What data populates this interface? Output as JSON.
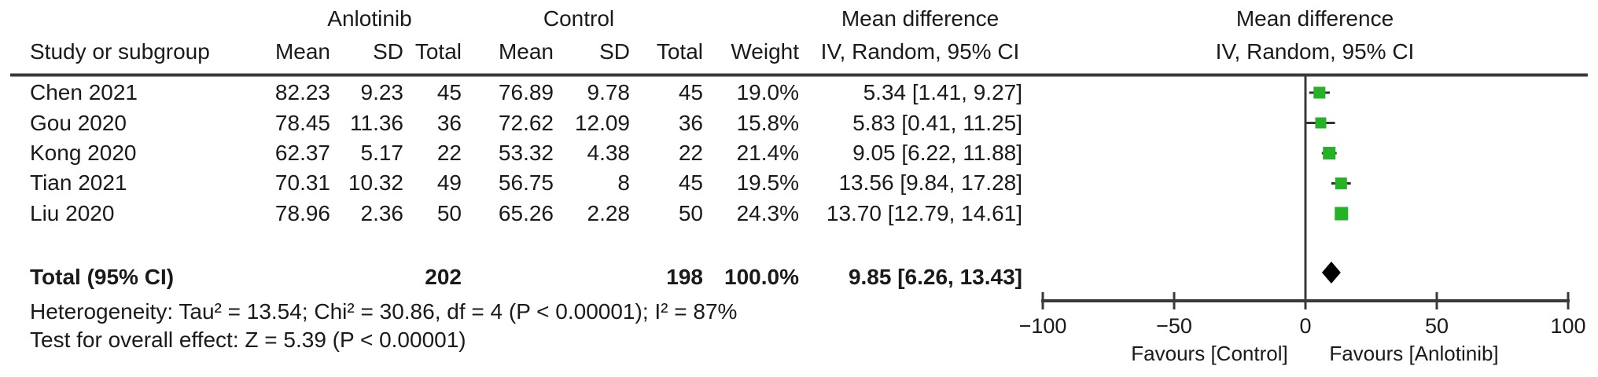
{
  "header": {
    "group1": "Anlotinib",
    "group2": "Control",
    "col_study": "Study or subgroup",
    "col_mean1": "Mean",
    "col_sd1": "SD",
    "col_total1": "Total",
    "col_mean2": "Mean",
    "col_sd2": "SD",
    "col_total2": "Total",
    "col_weight": "Weight",
    "md_title": "Mean difference",
    "md_subtitle": "IV, Random, 95% CI",
    "plot_title": "Mean difference",
    "plot_subtitle": "IV, Random, 95% CI"
  },
  "table": {
    "rows": [
      {
        "study": "Chen 2021",
        "mean1": "82.23",
        "sd1": "9.23",
        "total1": "45",
        "mean2": "76.89",
        "sd2": "9.78",
        "total2": "45",
        "weight": "19.0%",
        "ci": "5.34 [1.41, 9.27]"
      },
      {
        "study": "Gou 2020",
        "mean1": "78.45",
        "sd1": "11.36",
        "total1": "36",
        "mean2": "72.62",
        "sd2": "12.09",
        "total2": "36",
        "weight": "15.8%",
        "ci": "5.83 [0.41, 11.25]"
      },
      {
        "study": "Kong 2020",
        "mean1": "62.37",
        "sd1": "5.17",
        "total1": "22",
        "mean2": "53.32",
        "sd2": "4.38",
        "total2": "22",
        "weight": "21.4%",
        "ci": "9.05 [6.22, 11.88]"
      },
      {
        "study": "Tian 2021",
        "mean1": "70.31",
        "sd1": "10.32",
        "total1": "49",
        "mean2": "56.75",
        "sd2": "8",
        "total2": "45",
        "weight": "19.5%",
        "ci": "13.56 [9.84, 17.28]"
      },
      {
        "study": "Liu 2020",
        "mean1": "78.96",
        "sd1": "2.36",
        "total1": "50",
        "mean2": "65.26",
        "sd2": "2.28",
        "total2": "50",
        "weight": "24.3%",
        "ci": "13.70 [12.79, 14.61]"
      }
    ],
    "total": {
      "label": "Total (95% CI)",
      "total1": "202",
      "total2": "198",
      "weight": "100.0%",
      "ci": "9.85 [6.26, 13.43]"
    },
    "heterogeneity": "Heterogeneity: Tau² = 13.54; Chi² = 30.86, df = 4 (P < 0.00001); I² = 87%",
    "overall_effect": "Test for overall effect: Z = 5.39 (P < 0.00001)"
  },
  "chart_data": {
    "type": "forest",
    "title": "Mean difference",
    "subtitle": "IV, Random, 95% CI",
    "x_axis": {
      "min": -100,
      "max": 100,
      "ticks": [
        {
          "value": -100,
          "label": "−100"
        },
        {
          "value": -50,
          "label": "−50"
        },
        {
          "value": 0,
          "label": "0"
        },
        {
          "value": 50,
          "label": "50"
        },
        {
          "value": 100,
          "label": "100"
        }
      ]
    },
    "favours_left": "Favours [Control]",
    "favours_right": "Favours [Anlotinib]",
    "studies": [
      {
        "name": "Chen 2021",
        "md": 5.34,
        "ci_low": 1.41,
        "ci_high": 9.27,
        "weight_pct": 19.0
      },
      {
        "name": "Gou 2020",
        "md": 5.83,
        "ci_low": 0.41,
        "ci_high": 11.25,
        "weight_pct": 15.8
      },
      {
        "name": "Kong 2020",
        "md": 9.05,
        "ci_low": 6.22,
        "ci_high": 11.88,
        "weight_pct": 21.4
      },
      {
        "name": "Tian 2021",
        "md": 13.56,
        "ci_low": 9.84,
        "ci_high": 17.28,
        "weight_pct": 19.5
      },
      {
        "name": "Liu 2020",
        "md": 13.7,
        "ci_low": 12.79,
        "ci_high": 14.61,
        "weight_pct": 24.3
      }
    ],
    "total": {
      "md": 9.85,
      "ci_low": 6.26,
      "ci_high": 13.43
    },
    "marker_color": "#26b226",
    "diamond_color": "#000000",
    "line_color": "#3a3a3a"
  }
}
